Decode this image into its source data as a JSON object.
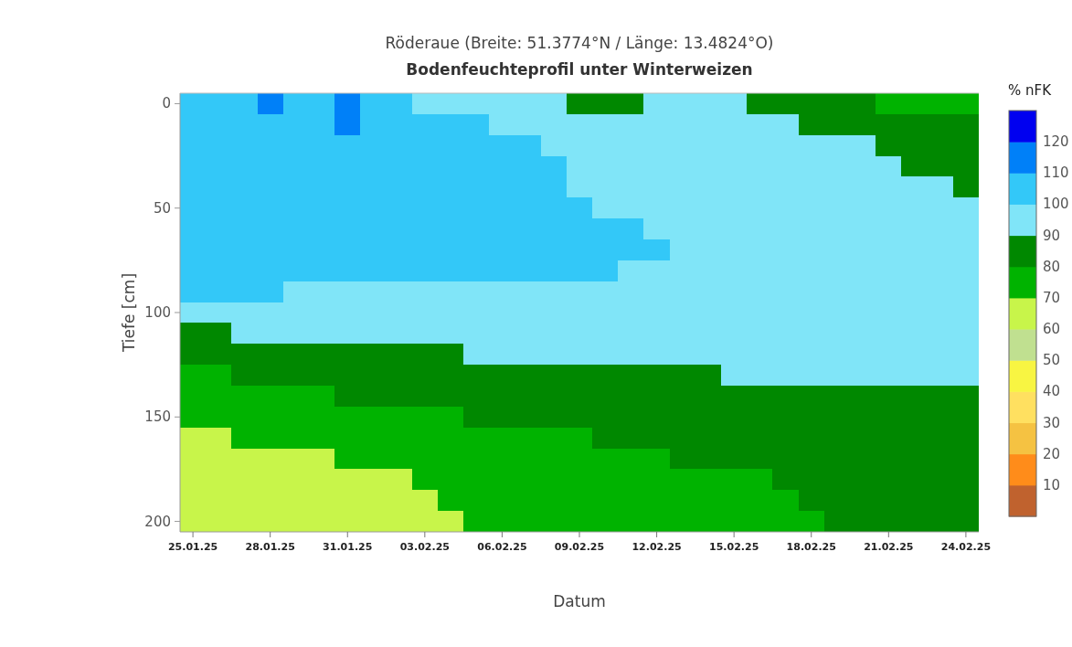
{
  "chart_data": {
    "type": "heatmap",
    "title": "Röderaue (Breite: 51.3774°N / Länge: 13.4824°O)",
    "subtitle": "Bodenfeuchteprofil unter Winterweizen",
    "xlabel": "Datum",
    "ylabel": "Tiefe [cm]",
    "clabel": "% nFK",
    "categories": [
      "25.01.25",
      null,
      null,
      "28.01.25",
      null,
      null,
      "31.01.25",
      null,
      null,
      "03.02.25",
      null,
      null,
      "06.02.25",
      null,
      null,
      "09.02.25",
      null,
      null,
      "12.02.25",
      null,
      null,
      "15.02.25",
      null,
      null,
      "18.02.25",
      null,
      null,
      "21.02.25",
      null,
      null,
      "24.02.25"
    ],
    "y_categories": [
      "0",
      null,
      null,
      null,
      null,
      "50",
      null,
      null,
      null,
      null,
      "100",
      null,
      null,
      null,
      null,
      "150",
      null,
      null,
      null,
      null,
      "200"
    ],
    "cells": [
      [
        105,
        105,
        105,
        115,
        105,
        105,
        115,
        105,
        105,
        95,
        95,
        95,
        95,
        95,
        95,
        85,
        85,
        85,
        95,
        95,
        95,
        95,
        85,
        85,
        85,
        85,
        85,
        75,
        75,
        75,
        75
      ],
      [
        105,
        105,
        105,
        105,
        105,
        105,
        115,
        105,
        105,
        105,
        105,
        105,
        95,
        95,
        95,
        95,
        95,
        95,
        95,
        95,
        95,
        95,
        95,
        95,
        85,
        85,
        85,
        85,
        85,
        85,
        85
      ],
      [
        105,
        105,
        105,
        105,
        105,
        105,
        105,
        105,
        105,
        105,
        105,
        105,
        105,
        105,
        95,
        95,
        95,
        95,
        95,
        95,
        95,
        95,
        95,
        95,
        95,
        95,
        95,
        85,
        85,
        85,
        85
      ],
      [
        105,
        105,
        105,
        105,
        105,
        105,
        105,
        105,
        105,
        105,
        105,
        105,
        105,
        105,
        105,
        95,
        95,
        95,
        95,
        95,
        95,
        95,
        95,
        95,
        95,
        95,
        95,
        95,
        85,
        85,
        85
      ],
      [
        105,
        105,
        105,
        105,
        105,
        105,
        105,
        105,
        105,
        105,
        105,
        105,
        105,
        105,
        105,
        95,
        95,
        95,
        95,
        95,
        95,
        95,
        95,
        95,
        95,
        95,
        95,
        95,
        95,
        95,
        85
      ],
      [
        105,
        105,
        105,
        105,
        105,
        105,
        105,
        105,
        105,
        105,
        105,
        105,
        105,
        105,
        105,
        105,
        95,
        95,
        95,
        95,
        95,
        95,
        95,
        95,
        95,
        95,
        95,
        95,
        95,
        95,
        95
      ],
      [
        105,
        105,
        105,
        105,
        105,
        105,
        105,
        105,
        105,
        105,
        105,
        105,
        105,
        105,
        105,
        105,
        105,
        105,
        95,
        95,
        95,
        95,
        95,
        95,
        95,
        95,
        95,
        95,
        95,
        95,
        95
      ],
      [
        105,
        105,
        105,
        105,
        105,
        105,
        105,
        105,
        105,
        105,
        105,
        105,
        105,
        105,
        105,
        105,
        105,
        105,
        105,
        95,
        95,
        95,
        95,
        95,
        95,
        95,
        95,
        95,
        95,
        95,
        95
      ],
      [
        105,
        105,
        105,
        105,
        105,
        105,
        105,
        105,
        105,
        105,
        105,
        105,
        105,
        105,
        105,
        105,
        105,
        95,
        95,
        95,
        95,
        95,
        95,
        95,
        95,
        95,
        95,
        95,
        95,
        95,
        95
      ],
      [
        105,
        105,
        105,
        105,
        95,
        95,
        95,
        95,
        95,
        95,
        95,
        95,
        95,
        95,
        95,
        95,
        95,
        95,
        95,
        95,
        95,
        95,
        95,
        95,
        95,
        95,
        95,
        95,
        95,
        95,
        95
      ],
      [
        95,
        95,
        95,
        95,
        95,
        95,
        95,
        95,
        95,
        95,
        95,
        95,
        95,
        95,
        95,
        95,
        95,
        95,
        95,
        95,
        95,
        95,
        95,
        95,
        95,
        95,
        95,
        95,
        95,
        95,
        95
      ],
      [
        85,
        85,
        95,
        95,
        95,
        95,
        95,
        95,
        95,
        95,
        95,
        95,
        95,
        95,
        95,
        95,
        95,
        95,
        95,
        95,
        95,
        95,
        95,
        95,
        95,
        95,
        95,
        95,
        95,
        95,
        95
      ],
      [
        85,
        85,
        85,
        85,
        85,
        85,
        85,
        85,
        85,
        85,
        85,
        95,
        95,
        95,
        95,
        95,
        95,
        95,
        95,
        95,
        95,
        95,
        95,
        95,
        95,
        95,
        95,
        95,
        95,
        95,
        95
      ],
      [
        75,
        75,
        85,
        85,
        85,
        85,
        85,
        85,
        85,
        85,
        85,
        85,
        85,
        85,
        85,
        85,
        85,
        85,
        85,
        85,
        85,
        95,
        95,
        95,
        95,
        95,
        95,
        95,
        95,
        95,
        95
      ],
      [
        75,
        75,
        75,
        75,
        75,
        75,
        85,
        85,
        85,
        85,
        85,
        85,
        85,
        85,
        85,
        85,
        85,
        85,
        85,
        85,
        85,
        85,
        85,
        85,
        85,
        85,
        85,
        85,
        85,
        85,
        85
      ],
      [
        75,
        75,
        75,
        75,
        75,
        75,
        75,
        75,
        75,
        75,
        75,
        85,
        85,
        85,
        85,
        85,
        85,
        85,
        85,
        85,
        85,
        85,
        85,
        85,
        85,
        85,
        85,
        85,
        85,
        85,
        85
      ],
      [
        65,
        65,
        75,
        75,
        75,
        75,
        75,
        75,
        75,
        75,
        75,
        75,
        75,
        75,
        75,
        75,
        85,
        85,
        85,
        85,
        85,
        85,
        85,
        85,
        85,
        85,
        85,
        85,
        85,
        85,
        85
      ],
      [
        65,
        65,
        65,
        65,
        65,
        65,
        75,
        75,
        75,
        75,
        75,
        75,
        75,
        75,
        75,
        75,
        75,
        75,
        75,
        85,
        85,
        85,
        85,
        85,
        85,
        85,
        85,
        85,
        85,
        85,
        85
      ],
      [
        65,
        65,
        65,
        65,
        65,
        65,
        65,
        65,
        65,
        75,
        75,
        75,
        75,
        75,
        75,
        75,
        75,
        75,
        75,
        75,
        75,
        75,
        75,
        85,
        85,
        85,
        85,
        85,
        85,
        85,
        85
      ],
      [
        65,
        65,
        65,
        65,
        65,
        65,
        65,
        65,
        65,
        65,
        75,
        75,
        75,
        75,
        75,
        75,
        75,
        75,
        75,
        75,
        75,
        75,
        75,
        75,
        85,
        85,
        85,
        85,
        85,
        85,
        85
      ],
      [
        65,
        65,
        65,
        65,
        65,
        65,
        65,
        65,
        65,
        65,
        65,
        75,
        75,
        75,
        75,
        75,
        75,
        75,
        75,
        75,
        75,
        75,
        75,
        75,
        75,
        85,
        85,
        85,
        85,
        85,
        85
      ]
    ],
    "clim": [
      0,
      130
    ],
    "cticks": [
      10,
      20,
      30,
      40,
      50,
      60,
      70,
      80,
      90,
      100,
      110,
      120
    ]
  }
}
